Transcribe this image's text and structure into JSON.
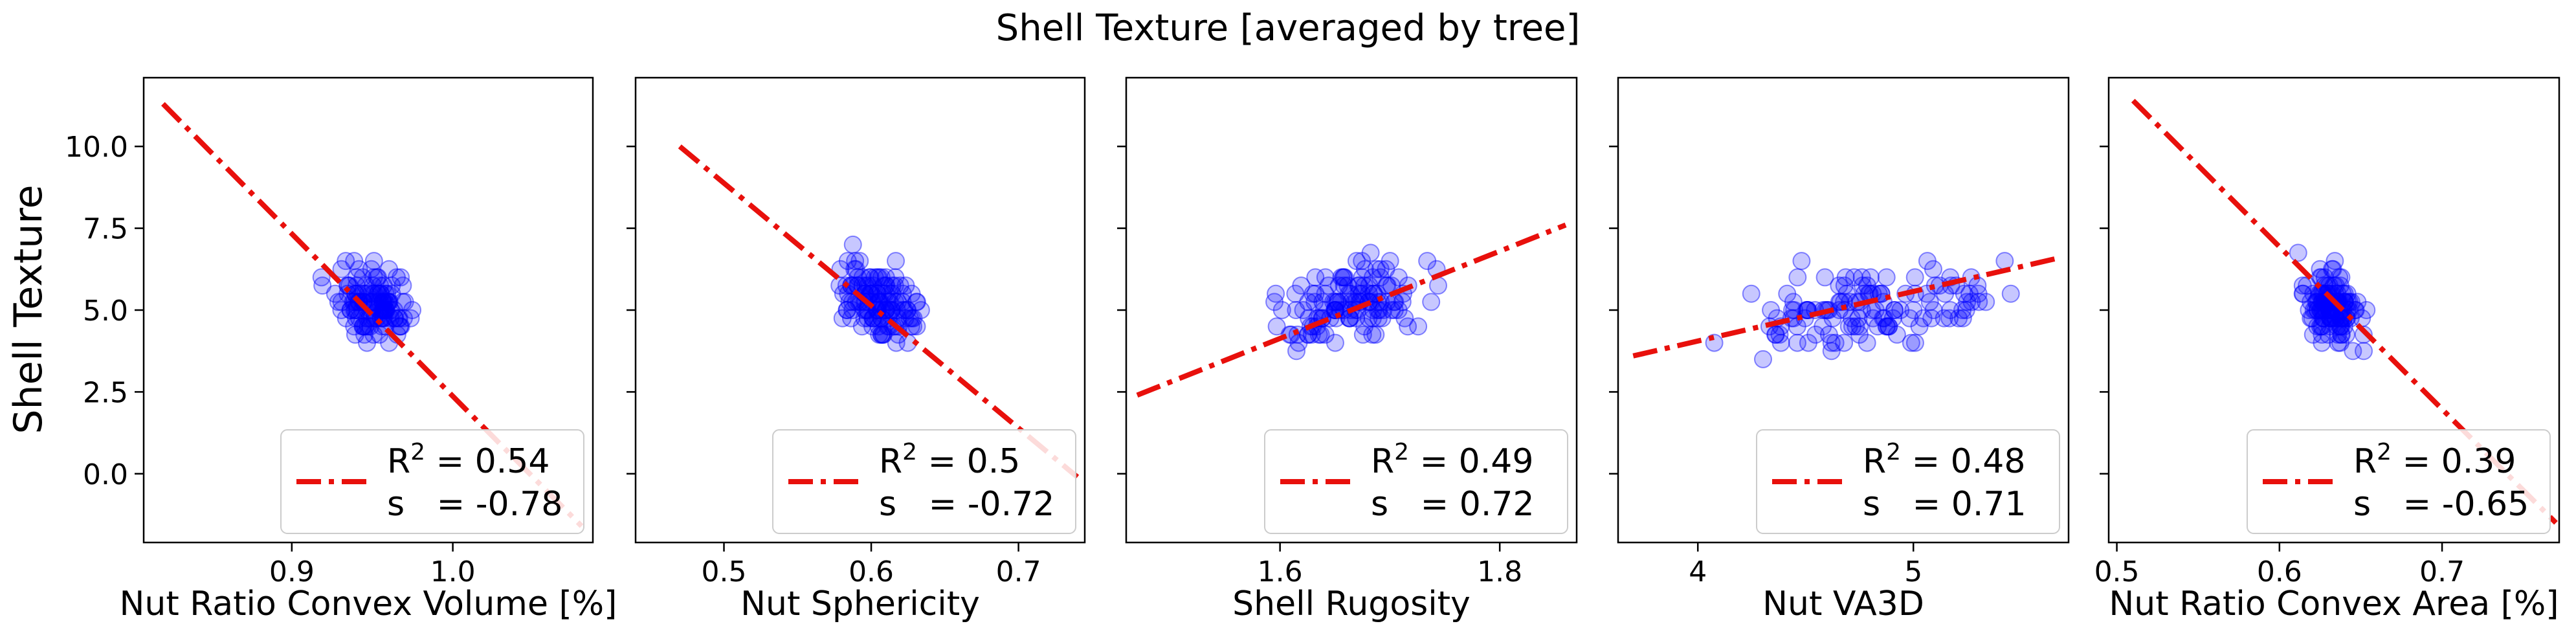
{
  "figure": {
    "title": "Shell Texture [averaged by tree]",
    "ylabel": "Shell Texture",
    "yticks": [
      0.0,
      2.5,
      5.0,
      7.5,
      10.0
    ],
    "ylim": [
      -2.1,
      12.1
    ]
  },
  "colors": {
    "points": "#0000ff",
    "fit_line": "#e8100c",
    "axes": "#000000"
  },
  "chart_data": [
    {
      "type": "scatter",
      "xlabel": "Nut Ratio Convex Volume [%]",
      "xlim": [
        0.808,
        1.087
      ],
      "xticks": [
        0.9,
        1.0
      ],
      "xtick_labels": [
        "0.9",
        "1.0"
      ],
      "trend_line": {
        "x": [
          0.82,
          1.08
        ],
        "y": [
          11.3,
          -1.6
        ]
      },
      "points_range": {
        "x": [
          0.915,
          0.985
        ],
        "y": [
          3.4,
          7.0
        ]
      },
      "legend": {
        "r2_label": "R",
        "r2_sup": "2",
        "r2_text": " = 0.54",
        "s_text": "s   = -0.78",
        "position": "lower right"
      }
    },
    {
      "type": "scatter",
      "xlabel": "Nut Sphericity",
      "xlim": [
        0.44,
        0.745
      ],
      "xticks": [
        0.5,
        0.6,
        0.7
      ],
      "xtick_labels": [
        "0.5",
        "0.6",
        "0.7"
      ],
      "trend_line": {
        "x": [
          0.47,
          0.74
        ],
        "y": [
          10.0,
          -0.1
        ]
      },
      "points_range": {
        "x": [
          0.565,
          0.645
        ],
        "y": [
          3.4,
          7.0
        ]
      },
      "legend": {
        "r2_label": "R",
        "r2_sup": "2",
        "r2_text": " = 0.5",
        "s_text": "s   = -0.72",
        "position": "lower right"
      }
    },
    {
      "type": "scatter",
      "xlabel": "Shell Rugosity",
      "xlim": [
        1.46,
        1.87
      ],
      "xticks": [
        1.6,
        1.8
      ],
      "xtick_labels": [
        "1.6",
        "1.8"
      ],
      "trend_line": {
        "x": [
          1.47,
          1.86
        ],
        "y": [
          2.4,
          7.6
        ]
      },
      "points_range": {
        "x": [
          1.57,
          1.76
        ],
        "y": [
          3.4,
          7.0
        ]
      },
      "legend": {
        "r2_label": "R",
        "r2_sup": "2",
        "r2_text": " = 0.49",
        "s_text": "s   = 0.72",
        "position": "lower right"
      }
    },
    {
      "type": "scatter",
      "xlabel": "Nut VA3D",
      "xlim": [
        3.63,
        5.72
      ],
      "xticks": [
        4,
        5
      ],
      "xtick_labels": [
        "4",
        "5"
      ],
      "trend_line": {
        "x": [
          3.7,
          5.68
        ],
        "y": [
          3.6,
          6.6
        ]
      },
      "points_range": {
        "x": [
          3.8,
          5.65
        ],
        "y": [
          3.4,
          6.7
        ]
      },
      "legend": {
        "r2_label": "R",
        "r2_sup": "2",
        "r2_text": " = 0.48",
        "s_text": "s   = 0.71",
        "position": "lower right"
      }
    },
    {
      "type": "scatter",
      "xlabel": "Nut Ratio Convex Area [%]",
      "xlim": [
        0.495,
        0.772
      ],
      "xticks": [
        0.5,
        0.6,
        0.7
      ],
      "xtick_labels": [
        "0.5",
        "0.6",
        "0.7"
      ],
      "trend_line": {
        "x": [
          0.51,
          0.77
        ],
        "y": [
          11.4,
          -1.5
        ]
      },
      "points_range": {
        "x": [
          0.605,
          0.66
        ],
        "y": [
          3.4,
          7.0
        ]
      },
      "legend": {
        "r2_label": "R",
        "r2_sup": "2",
        "r2_text": " = 0.39",
        "s_text": "s   = -0.65",
        "position": "lower right"
      }
    }
  ]
}
